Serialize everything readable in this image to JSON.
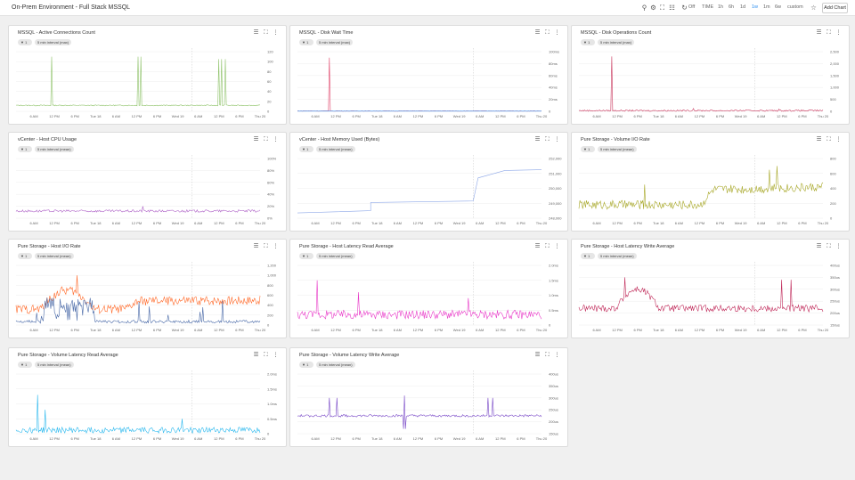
{
  "header": {
    "title": "On-Prem Environment - Full Stack MSSQL",
    "off_label": "Off",
    "time_label": "TIME",
    "ranges": [
      "1h",
      "6h",
      "1d",
      "1w",
      "1m",
      "6w",
      "custom"
    ],
    "active_range": "1w",
    "add_chart": "Add Chart"
  },
  "chart_data": [
    {
      "title": "MSSQL - Active Connections Count",
      "type": "line",
      "filter_label": "1",
      "interval_label": "5 min interval (max)",
      "color": "#8fc36a",
      "y_ticks": [
        "120",
        "100",
        "80",
        "60",
        "40",
        "20",
        "0"
      ],
      "x_ticks": [
        "6 AM",
        "12 PM",
        "6 PM",
        "Tue 18",
        "6 AM",
        "12 PM",
        "6 PM",
        "Wed 19",
        "6 AM",
        "12 PM",
        "6 PM",
        "Thu 20"
      ],
      "ylim": [
        0,
        120
      ],
      "baseline": 12,
      "noise": 1,
      "spikes": [
        [
          0.145,
          110
        ],
        [
          0.5,
          110
        ],
        [
          0.51,
          110
        ],
        [
          0.83,
          105
        ],
        [
          0.843,
          105
        ],
        [
          0.856,
          105
        ]
      ]
    },
    {
      "title": "MSSQL - Disk Wait Time",
      "type": "line",
      "filter_label": "1",
      "interval_label": "5 min interval (max)",
      "color": "#e0446a",
      "color2": "#2a8df0",
      "y_ticks": [
        "100ms",
        "80ms",
        "60ms",
        "40ms",
        "20ms",
        "0"
      ],
      "x_ticks": [
        "6 AM",
        "12 PM",
        "6 PM",
        "Tue 18",
        "6 AM",
        "12 PM",
        "6 PM",
        "Wed 19",
        "6 AM",
        "12 PM",
        "6 PM",
        "Thu 20"
      ],
      "ylim": [
        0,
        100
      ],
      "baseline": 0.5,
      "noise": 0.3,
      "spikes": [
        [
          0.13,
          90
        ]
      ]
    },
    {
      "title": "MSSQL - Disk Operations Count",
      "type": "line",
      "filter_label": "1",
      "interval_label": "5 min interval (max)",
      "color": "#c9375d",
      "y_ticks": [
        "2,500",
        "2,000",
        "1,500",
        "1,000",
        "500",
        "0"
      ],
      "x_ticks": [
        "6 AM",
        "12 PM",
        "6 PM",
        "Tue 18",
        "6 AM",
        "12 PM",
        "6 PM",
        "Wed 19",
        "6 AM",
        "12 PM",
        "6 PM",
        "Thu 20"
      ],
      "ylim": [
        0,
        2500
      ],
      "baseline": 30,
      "noise": 30,
      "spikes": [
        [
          0.135,
          2300
        ],
        [
          0.47,
          120
        ],
        [
          0.82,
          90
        ]
      ]
    },
    {
      "title": "vCenter - Host CPU Usage",
      "type": "line",
      "filter_label": "1",
      "interval_label": "5 min interval (mean)",
      "color": "#b065c8",
      "y_ticks": [
        "100%",
        "80%",
        "60%",
        "40%",
        "20%",
        "0%"
      ],
      "x_ticks": [
        "6 AM",
        "12 PM",
        "6 PM",
        "Tue 18",
        "6 AM",
        "12 PM",
        "6 PM",
        "Wed 19",
        "6 AM",
        "12 PM",
        "6 PM",
        "Thu 20"
      ],
      "ylim": [
        0,
        100
      ],
      "baseline": 12,
      "noise": 2,
      "spikes": [
        [
          0.52,
          20
        ]
      ]
    },
    {
      "title": "vCenter - Host Memory Used (Bytes)",
      "type": "step",
      "filter_label": "1",
      "interval_label": "5 min interval (mean)",
      "color": "#8ea8e8",
      "y_ticks": [
        "252,000",
        "251,000",
        "250,000",
        "249,000",
        "248,000"
      ],
      "x_ticks": [
        "6 AM",
        "12 PM",
        "6 PM",
        "Tue 18",
        "6 AM",
        "12 PM",
        "6 PM",
        "Wed 19",
        "6 AM",
        "12 PM",
        "6 PM",
        "Thu 20"
      ],
      "ylim": [
        248000,
        252000
      ],
      "steps": [
        [
          0,
          248350
        ],
        [
          0.3,
          248500
        ],
        [
          0.3,
          249050
        ],
        [
          0.72,
          249150
        ],
        [
          0.74,
          250700
        ],
        [
          0.85,
          251200
        ],
        [
          1,
          251250
        ]
      ]
    },
    {
      "title": "Pure Storage - Volume I/O Rate",
      "type": "line",
      "filter_label": "1",
      "interval_label": "5 min interval (mean)",
      "color": "#a8a828",
      "y_ticks": [
        "800",
        "600",
        "400",
        "200",
        "0"
      ],
      "x_ticks": [
        "6 AM",
        "12 PM",
        "6 PM",
        "Tue 18",
        "6 AM",
        "12 PM",
        "6 PM",
        "Wed 19",
        "6 AM",
        "12 PM",
        "6 PM",
        "Thu 20"
      ],
      "ylim": [
        0,
        800
      ],
      "baseline": 180,
      "noise": 60,
      "ramp": [
        [
          0.5,
          180
        ],
        [
          0.55,
          380
        ],
        [
          1,
          420
        ]
      ],
      "spikes": [
        [
          0.27,
          450
        ],
        [
          0.81,
          700
        ],
        [
          0.78,
          650
        ]
      ]
    },
    {
      "title": "Pure Storage - Host I/O Rate",
      "type": "line",
      "filter_label": "1",
      "interval_label": "5 min interval (mean)",
      "color": "#ff6a2a",
      "color2": "#4a6aa8",
      "y_ticks": [
        "1,200",
        "1,000",
        "800",
        "600",
        "400",
        "200",
        "0"
      ],
      "x_ticks": [
        "6 AM",
        "12 PM",
        "6 PM",
        "Tue 18",
        "6 AM",
        "12 PM",
        "6 PM",
        "Wed 19",
        "6 AM",
        "12 PM",
        "6 PM",
        "Thu 20"
      ],
      "ylim": [
        0,
        1200
      ],
      "baseline": 320,
      "noise": 90,
      "hump": [
        0.1,
        0.32,
        700
      ],
      "ramp": [
        [
          0.45,
          320
        ],
        [
          0.5,
          480
        ],
        [
          1,
          500
        ]
      ],
      "spikes": [
        [
          0.25,
          1000
        ]
      ]
    },
    {
      "title": "Pure Storage - Host Latency Read Average",
      "type": "line",
      "filter_label": "1",
      "interval_label": "5 min interval (mean)",
      "color": "#e83ac8",
      "y_ticks": [
        "2.0ms",
        "1.5ms",
        "1.0ms",
        "0.5ms",
        "0"
      ],
      "x_ticks": [
        "6 AM",
        "12 PM",
        "6 PM",
        "Tue 18",
        "6 AM",
        "12 PM",
        "6 PM",
        "Wed 19",
        "6 AM",
        "12 PM",
        "6 PM",
        "Thu 20"
      ],
      "ylim": [
        0,
        2
      ],
      "baseline": 0.35,
      "noise": 0.15,
      "spikes": [
        [
          0.08,
          1.5
        ],
        [
          0.25,
          1.1
        ],
        [
          0.7,
          0.9
        ]
      ]
    },
    {
      "title": "Pure Storage - Host Latency Write Average",
      "type": "line",
      "filter_label": "1",
      "interval_label": "5 min interval (mean)",
      "color": "#c02a5a",
      "y_ticks": [
        "400us",
        "350us",
        "300us",
        "250us",
        "200us",
        "150us"
      ],
      "x_ticks": [
        "6 AM",
        "12 PM",
        "6 PM",
        "Tue 18",
        "6 AM",
        "12 PM",
        "6 PM",
        "Wed 19",
        "6 AM",
        "12 PM",
        "6 PM",
        "Thu 20"
      ],
      "ylim": [
        150,
        400
      ],
      "baseline": 220,
      "noise": 15,
      "hump": [
        0.15,
        0.33,
        300
      ],
      "spikes": [
        [
          0.19,
          350
        ],
        [
          0.83,
          340
        ],
        [
          0.87,
          340
        ]
      ]
    },
    {
      "title": "Pure Storage - Volume Latency Read Average",
      "type": "line",
      "filter_label": "1",
      "interval_label": "5 min interval (mean)",
      "color": "#2ab8ee",
      "y_ticks": [
        "2.0ms",
        "1.5ms",
        "1.0ms",
        "0.5ms",
        "0"
      ],
      "x_ticks": [
        "6 AM",
        "12 PM",
        "6 PM",
        "Tue 18",
        "6 AM",
        "12 PM",
        "6 PM",
        "Wed 19",
        "6 AM",
        "12 PM",
        "6 PM",
        "Thu 20"
      ],
      "ylim": [
        0,
        2
      ],
      "baseline": 0.12,
      "noise": 0.1,
      "spikes": [
        [
          0.09,
          1.3
        ],
        [
          0.12,
          0.8
        ],
        [
          0.68,
          0.5
        ]
      ]
    },
    {
      "title": "Pure Storage - Volume Latency Write Average",
      "type": "line",
      "filter_label": "1",
      "interval_label": "5 min interval (mean)",
      "color": "#7a4ac8",
      "y_ticks": [
        "400us",
        "350us",
        "300us",
        "250us",
        "200us",
        "150us"
      ],
      "x_ticks": [
        "6 AM",
        "12 PM",
        "6 PM",
        "Tue 18",
        "6 AM",
        "12 PM",
        "6 PM",
        "Wed 19",
        "6 AM",
        "12 PM",
        "6 PM",
        "Thu 20"
      ],
      "ylim": [
        150,
        400
      ],
      "baseline": 225,
      "noise": 5,
      "spikes": [
        [
          0.13,
          300
        ],
        [
          0.16,
          300
        ],
        [
          0.44,
          310
        ],
        [
          0.78,
          300
        ],
        [
          0.8,
          300
        ]
      ],
      "dips": [
        [
          0.44,
          170
        ]
      ]
    }
  ]
}
